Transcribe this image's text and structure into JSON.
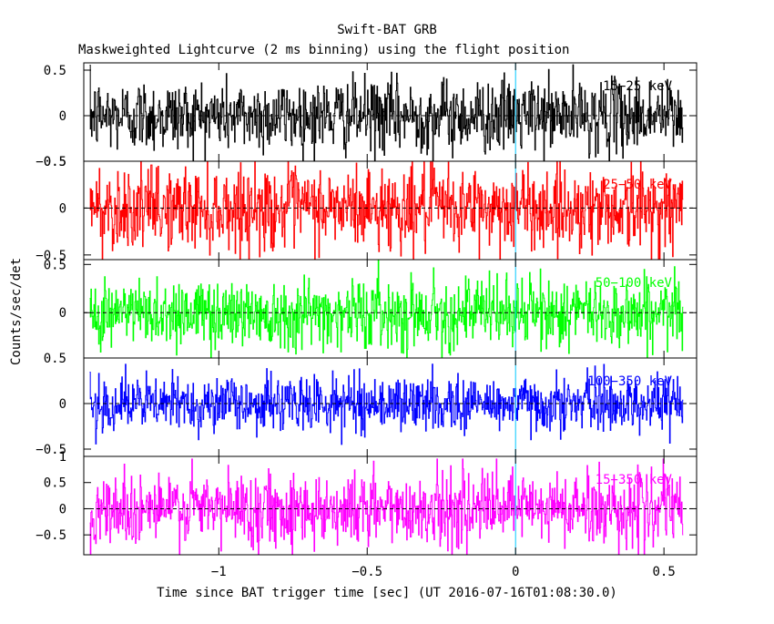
{
  "header": {
    "title": "Swift-BAT GRB",
    "subtitle": "Maskweighted Lightcurve (2 ms binning) using the flight position"
  },
  "ylabel": "Counts/sec/det",
  "xlabel": "Time since BAT trigger time [sec] (UT 2016-07-16T01:08:30.0)",
  "chart_data": {
    "type": "line",
    "x_range": [
      -1.455,
      0.61
    ],
    "data_x_range": [
      -1.435,
      0.565
    ],
    "bin_width": 0.002,
    "x_ticks": [
      -1,
      -0.5,
      0,
      0.5
    ],
    "x_tick_labels": [
      "−1",
      "−0.5",
      "0",
      "0.5"
    ],
    "marker_x": 0,
    "panels": [
      {
        "name": "15−25 keV",
        "color": "#000000",
        "ylim": [
          -0.5,
          0.58
        ],
        "y_ticks": [
          -0.5,
          0,
          0.5
        ],
        "y_tick_labels": [
          "−0.5",
          "0",
          "0.5"
        ],
        "noise_amplitude": 0.2,
        "noise_max": 0.6
      },
      {
        "name": "25−50 keV",
        "color": "#ff0000",
        "ylim": [
          -0.55,
          0.5
        ],
        "y_ticks": [
          -0.5,
          0,
          0.5
        ],
        "y_tick_labels": [
          "−0.5",
          "0",
          "0.5"
        ],
        "noise_amplitude": 0.22,
        "noise_max": 0.6
      },
      {
        "name": "50−100 keV",
        "color": "#00ff00",
        "ylim": [
          -0.47,
          0.55
        ],
        "y_ticks": [
          0,
          0.5
        ],
        "y_tick_labels": [
          "0",
          "0.5"
        ],
        "noise_amplitude": 0.18,
        "noise_max": 0.55
      },
      {
        "name": "100−350 keV",
        "color": "#0000ff",
        "ylim": [
          -0.58,
          0.5
        ],
        "y_ticks": [
          -0.5,
          0,
          0.5
        ],
        "y_tick_labels": [
          "−0.5",
          "0",
          "0.5"
        ],
        "noise_amplitude": 0.15,
        "noise_max": 0.55
      },
      {
        "name": "15−350 keV",
        "color": "#ff00ff",
        "ylim": [
          -0.88,
          1.0
        ],
        "y_ticks": [
          -0.5,
          0,
          0.5,
          1
        ],
        "y_tick_labels": [
          "−0.5",
          "0",
          "0.5",
          "1"
        ],
        "noise_amplitude": 0.35,
        "noise_max": 0.95
      }
    ]
  }
}
